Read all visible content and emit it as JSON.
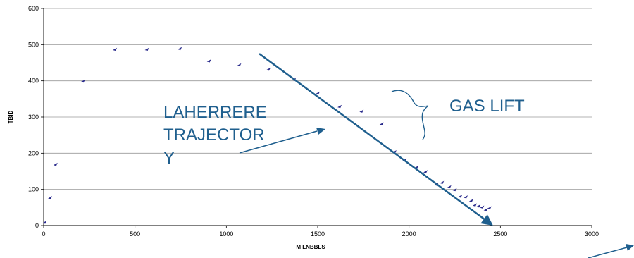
{
  "chart_data": {
    "type": "scatter",
    "title": "",
    "xlabel": "M LNBBLS",
    "ylabel": "TBID",
    "xlim": [
      0,
      3000
    ],
    "ylim": [
      0,
      600
    ],
    "x_ticks": [
      0,
      500,
      1000,
      1500,
      2000,
      2500,
      3000
    ],
    "y_ticks": [
      0,
      100,
      200,
      300,
      400,
      500,
      600
    ],
    "grid": "horizontal",
    "legend": "none",
    "marker_color": "#2b2c8c",
    "series": [
      {
        "points": [
          [
            5,
            10
          ],
          [
            35,
            78
          ],
          [
            65,
            170
          ],
          [
            215,
            400
          ],
          [
            390,
            488
          ],
          [
            565,
            488
          ],
          [
            745,
            490
          ],
          [
            905,
            456
          ],
          [
            1070,
            445
          ],
          [
            1230,
            433
          ],
          [
            1370,
            405
          ],
          [
            1500,
            367
          ],
          [
            1620,
            330
          ],
          [
            1740,
            317
          ],
          [
            1850,
            282
          ],
          [
            1920,
            205
          ],
          [
            1975,
            182
          ],
          [
            2040,
            162
          ],
          [
            2090,
            150
          ],
          [
            2150,
            115
          ],
          [
            2180,
            120
          ],
          [
            2220,
            108
          ],
          [
            2250,
            100
          ],
          [
            2280,
            82
          ],
          [
            2310,
            80
          ],
          [
            2340,
            70
          ],
          [
            2360,
            58
          ],
          [
            2380,
            55
          ],
          [
            2400,
            52
          ],
          [
            2420,
            45
          ],
          [
            2440,
            50
          ]
        ]
      }
    ],
    "trend_line": {
      "from": [
        1180,
        475
      ],
      "to": [
        2460,
        0
      ],
      "color": "#1f5f8e"
    },
    "annotations": [
      {
        "lines": [
          "LAHERRERE",
          "TRAJECTOR",
          "Y"
        ],
        "color": "#1f5f8e"
      },
      {
        "lines": [
          "GAS LIFT"
        ],
        "color": "#1f5f8e"
      }
    ]
  }
}
